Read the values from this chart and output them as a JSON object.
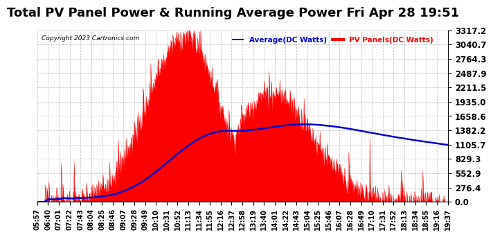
{
  "title": "Total PV Panel Power & Running Average Power Fri Apr 28 19:51",
  "copyright": "Copyright 2023 Cartronics.com",
  "legend_avg": "Average(DC Watts)",
  "legend_pv": "PV Panels(DC Watts)",
  "ytick_labels": [
    "0.0",
    "276.4",
    "552.9",
    "829.3",
    "1105.7",
    "1382.2",
    "1658.6",
    "1935.0",
    "2211.5",
    "2487.9",
    "2764.3",
    "3040.7",
    "3317.2"
  ],
  "ytick_values": [
    0.0,
    276.4,
    552.9,
    829.3,
    1105.7,
    1382.2,
    1658.6,
    1935.0,
    2211.5,
    2487.9,
    2764.3,
    3040.7,
    3317.2
  ],
  "xtick_labels": [
    "05:57",
    "06:40",
    "07:01",
    "07:22",
    "07:43",
    "08:04",
    "08:25",
    "08:46",
    "09:07",
    "09:28",
    "09:49",
    "10:10",
    "10:31",
    "10:52",
    "11:13",
    "11:34",
    "11:55",
    "12:16",
    "12:37",
    "12:58",
    "13:19",
    "13:40",
    "14:01",
    "14:22",
    "14:43",
    "15:04",
    "15:25",
    "15:46",
    "16:07",
    "16:28",
    "16:49",
    "17:10",
    "17:31",
    "17:52",
    "18:13",
    "18:34",
    "18:55",
    "19:16",
    "19:37"
  ],
  "pv_color": "#FF0000",
  "avg_color": "#0000CC",
  "background_color": "#FFFFFF",
  "plot_background": "#FFFFFF",
  "grid_color": "#BBBBBB",
  "title_fontsize": 13,
  "ylabel_fontsize": 8.5,
  "xlabel_fontsize": 7,
  "ymax": 3317.2
}
